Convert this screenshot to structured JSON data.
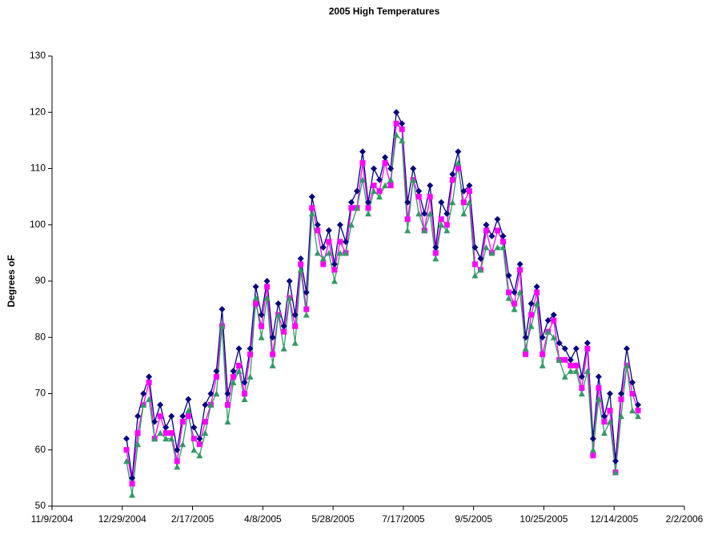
{
  "chart_data": {
    "type": "line",
    "title": "2005 High Temperatures",
    "y_label": "Degrees  oF",
    "x": [
      38353,
      38357,
      38361,
      38365,
      38369,
      38373,
      38377,
      38381,
      38385,
      38389,
      38393,
      38397,
      38401,
      38405,
      38409,
      38413,
      38417,
      38421,
      38425,
      38429,
      38433,
      38437,
      38441,
      38445,
      38449,
      38453,
      38457,
      38461,
      38465,
      38469,
      38473,
      38477,
      38481,
      38485,
      38489,
      38493,
      38497,
      38501,
      38505,
      38509,
      38513,
      38517,
      38521,
      38525,
      38529,
      38533,
      38537,
      38541,
      38545,
      38549,
      38553,
      38557,
      38561,
      38565,
      38569,
      38573,
      38577,
      38581,
      38585,
      38589,
      38593,
      38597,
      38601,
      38605,
      38609,
      38613,
      38617,
      38621,
      38625,
      38629,
      38633,
      38637,
      38641,
      38645,
      38649,
      38653,
      38657,
      38661,
      38665,
      38669,
      38673,
      38677,
      38681,
      38685,
      38689,
      38693,
      38697,
      38701,
      38705,
      38709,
      38713,
      38717
    ],
    "series": [
      {
        "color": "#000080",
        "marker": "diamond",
        "values": [
          62,
          55,
          66,
          70,
          73,
          65,
          68,
          64,
          66,
          60,
          66,
          69,
          64,
          62,
          68,
          70,
          74,
          85,
          70,
          74,
          78,
          72,
          78,
          89,
          84,
          90,
          80,
          86,
          82,
          90,
          84,
          94,
          88,
          105,
          100,
          96,
          99,
          93,
          100,
          97,
          104,
          106,
          113,
          104,
          110,
          108,
          112,
          110,
          120,
          118,
          104,
          110,
          106,
          102,
          107,
          96,
          104,
          102,
          109,
          113,
          106,
          107,
          96,
          94,
          100,
          98,
          101,
          98,
          91,
          88,
          93,
          80,
          86,
          89,
          80,
          83,
          84,
          79,
          78,
          76,
          78,
          73,
          79,
          62,
          73,
          66,
          70,
          58,
          70,
          78,
          72,
          68
        ]
      },
      {
        "color": "#ff00ff",
        "marker": "square",
        "values": [
          60,
          54,
          63,
          68,
          72,
          62,
          66,
          63,
          63,
          58,
          65,
          66,
          62,
          61,
          65,
          68,
          73,
          82,
          68,
          73,
          75,
          70,
          77,
          86,
          82,
          89,
          77,
          84,
          81,
          87,
          82,
          93,
          85,
          103,
          99,
          93,
          97,
          92,
          97,
          95,
          103,
          103,
          111,
          103,
          107,
          106,
          111,
          107,
          118,
          117,
          101,
          108,
          105,
          99,
          105,
          95,
          101,
          100,
          108,
          110,
          104,
          106,
          93,
          92,
          99,
          95,
          99,
          97,
          88,
          86,
          92,
          77,
          84,
          88,
          77,
          81,
          83,
          76,
          76,
          75,
          75,
          71,
          78,
          59,
          71,
          65,
          67,
          56,
          69,
          75,
          70,
          67
        ]
      },
      {
        "color": "#339966",
        "marker": "triangle",
        "values": [
          58,
          52,
          61,
          68,
          69,
          62,
          63,
          62,
          62,
          57,
          61,
          67,
          60,
          59,
          63,
          68,
          70,
          82,
          65,
          72,
          74,
          69,
          73,
          87,
          80,
          87,
          75,
          84,
          78,
          87,
          79,
          92,
          84,
          102,
          95,
          94,
          95,
          90,
          95,
          95,
          100,
          103,
          108,
          102,
          106,
          105,
          107,
          108,
          116,
          115,
          99,
          108,
          102,
          99,
          102,
          94,
          100,
          99,
          104,
          111,
          102,
          104,
          91,
          92,
          96,
          95,
          96,
          96,
          87,
          85,
          88,
          78,
          82,
          86,
          75,
          81,
          80,
          76,
          73,
          74,
          74,
          70,
          74,
          60,
          69,
          63,
          65,
          56,
          66,
          75,
          67,
          66
        ]
      }
    ],
    "xlim": [
      38300,
      38750
    ],
    "xticks": [
      {
        "value": 38300,
        "label": "11/9/2004"
      },
      {
        "value": 38350,
        "label": "12/29/2004"
      },
      {
        "value": 38400,
        "label": "2/17/2005"
      },
      {
        "value": 38450,
        "label": "4/8/2005"
      },
      {
        "value": 38500,
        "label": "5/28/2005"
      },
      {
        "value": 38550,
        "label": "7/17/2005"
      },
      {
        "value": 38600,
        "label": "9/5/2005"
      },
      {
        "value": 38650,
        "label": "10/25/2005"
      },
      {
        "value": 38700,
        "label": "12/14/2005"
      },
      {
        "value": 38750,
        "label": "2/2/2006"
      }
    ],
    "ylim": [
      50,
      130
    ],
    "yticks": [
      50,
      60,
      70,
      80,
      90,
      100,
      110,
      120,
      130
    ],
    "grid": false
  }
}
